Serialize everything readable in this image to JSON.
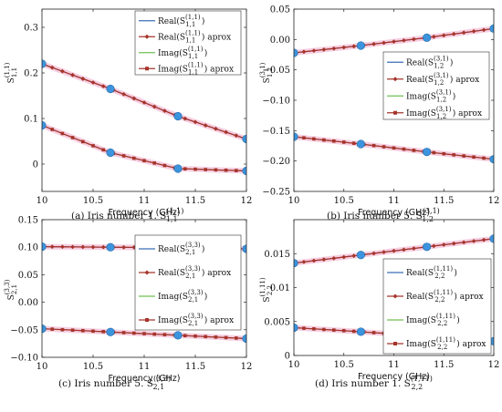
{
  "chart_data": [
    {
      "type": "line",
      "caption": "(a)  Iris number 1. S",
      "caption_sup": "(1,1)",
      "caption_sub": "1,1",
      "xlabel": "Frequency (GHz)",
      "ylabel_main": "S",
      "ylabel_sup": "(1,1)",
      "ylabel_sub": "1,1",
      "xlim": [
        10,
        12
      ],
      "ylim": [
        -0.06,
        0.34
      ],
      "xticks": [
        "10",
        "10.5",
        "11",
        "11.5",
        "12"
      ],
      "xtick_values": [
        10,
        10.5,
        11,
        11.5,
        12
      ],
      "yticks": [
        "0",
        "0.1",
        "0.2",
        "0.3"
      ],
      "ytick_values": [
        0,
        0.1,
        0.2,
        0.3
      ],
      "legend_position": "top-right",
      "legend_labels": [
        {
          "pre": "Real(S",
          "sup": "(1,1)",
          "sub": "1,1",
          "post": ")"
        },
        {
          "pre": "Real(S",
          "sup": "(1,1)",
          "sub": "1,1",
          "post": ") aprox"
        },
        {
          "pre": "Imag(S",
          "sup": "(1,1)",
          "sub": "1,1",
          "post": ")"
        },
        {
          "pre": "Imag(S",
          "sup": "(1,1)",
          "sub": "1,1",
          "post": ") aprox"
        }
      ],
      "series": [
        {
          "name": "Real",
          "x": [
            10,
            10.67,
            11.33,
            12
          ],
          "values": [
            0.22,
            0.165,
            0.105,
            0.055
          ]
        },
        {
          "name": "Imag",
          "x": [
            10,
            10.67,
            11.33,
            12
          ],
          "values": [
            0.085,
            0.025,
            -0.01,
            -0.015
          ]
        }
      ],
      "sample_points": [
        10,
        10.67,
        11.33,
        12
      ]
    },
    {
      "type": "line",
      "caption": "(b)  Iris number 5. S",
      "caption_sup": "(3,1)",
      "caption_sub": "1,2",
      "xlabel": "Frequency (GHz)",
      "ylabel_main": "S",
      "ylabel_sup": "(3,1)",
      "ylabel_sub": "1,2",
      "xlim": [
        10,
        12
      ],
      "ylim": [
        -0.25,
        0.05
      ],
      "xticks": [
        "10",
        "10.5",
        "11",
        "11.5",
        "12"
      ],
      "xtick_values": [
        10,
        10.5,
        11,
        11.5,
        12
      ],
      "yticks": [
        "0.05",
        "0.00",
        "−0.05",
        "−0.10",
        "−0.15",
        "−0.20",
        "−0.25"
      ],
      "ytick_values": [
        0.05,
        0,
        -0.05,
        -0.1,
        -0.15,
        -0.2,
        -0.25
      ],
      "legend_position": "center-right",
      "legend_labels": [
        {
          "pre": "Real(S",
          "sup": "(3,1)",
          "sub": "1,2",
          "post": ")"
        },
        {
          "pre": "Real(S",
          "sup": "(3,1)",
          "sub": "1,2",
          "post": ") aprox"
        },
        {
          "pre": "Imag(S",
          "sup": "(3,1)",
          "sub": "1,2",
          "post": ")"
        },
        {
          "pre": "Imag(S",
          "sup": "(3,1)",
          "sub": "1,2",
          "post": ") aprox"
        }
      ],
      "series": [
        {
          "name": "Real",
          "x": [
            10,
            10.67,
            11.33,
            12
          ],
          "values": [
            -0.022,
            -0.01,
            0.003,
            0.018
          ]
        },
        {
          "name": "Imag",
          "x": [
            10,
            10.67,
            11.33,
            12
          ],
          "values": [
            -0.16,
            -0.172,
            -0.185,
            -0.197
          ]
        }
      ],
      "sample_points": [
        10,
        10.67,
        11.33,
        12
      ]
    },
    {
      "type": "line",
      "caption": "(c)  Iris number 5. S",
      "caption_sup": "(3,3)",
      "caption_sub": "2,1",
      "xlabel": "Frequency (GHz)",
      "ylabel_main": "S",
      "ylabel_sup": "(3,3)",
      "ylabel_sub": "2,1",
      "xlim": [
        10,
        12
      ],
      "ylim": [
        -0.1,
        0.15
      ],
      "xticks": [
        "10",
        "10.5",
        "11",
        "11.5",
        "12"
      ],
      "xtick_values": [
        10,
        10.5,
        11,
        11.5,
        12
      ],
      "yticks": [
        "0.15",
        "0.10",
        "0.05",
        "0.00",
        "−0.05",
        "−0.10"
      ],
      "ytick_values": [
        0.15,
        0.1,
        0.05,
        0,
        -0.05,
        -0.1
      ],
      "legend_position": "right",
      "legend_labels": [
        {
          "pre": "Real(S",
          "sup": "(3,3)",
          "sub": "2,1",
          "post": ")"
        },
        {
          "pre": "Real(S",
          "sup": "(3,3)",
          "sub": "2,1",
          "post": ") aprox"
        },
        {
          "pre": "Imag(S",
          "sup": "(3,3)",
          "sub": "2,1",
          "post": ")"
        },
        {
          "pre": "Imag(S",
          "sup": "(3,3)",
          "sub": "2,1",
          "post": ") aprox"
        }
      ],
      "series": [
        {
          "name": "Real",
          "x": [
            10,
            10.67,
            11.33,
            12
          ],
          "values": [
            0.101,
            0.1,
            0.099,
            0.097
          ]
        },
        {
          "name": "Imag",
          "x": [
            10,
            10.67,
            11.33,
            12
          ],
          "values": [
            -0.048,
            -0.054,
            -0.06,
            -0.066
          ]
        }
      ],
      "sample_points": [
        10,
        10.67,
        11.33,
        12
      ]
    },
    {
      "type": "line",
      "caption": "(d)  Iris number 1. S",
      "caption_sup": "(1,11)",
      "caption_sub": "2,2",
      "xlabel": "Frequency (GHz)",
      "ylabel_main": "S",
      "ylabel_sup": "(1,11)",
      "ylabel_sub": "2,2",
      "xlim": [
        10,
        12
      ],
      "ylim": [
        0,
        0.02
      ],
      "xticks": [
        "10",
        "10.5",
        "11",
        "11.5",
        "12"
      ],
      "xtick_values": [
        10,
        10.5,
        11,
        11.5,
        12
      ],
      "yticks": [
        "0.015",
        "0.01",
        "0.005",
        "0"
      ],
      "ytick_values": [
        0.015,
        0.01,
        0.005,
        0
      ],
      "legend_position": "right",
      "legend_labels": [
        {
          "pre": "Real(S",
          "sup": "(1,11)",
          "sub": "2,2",
          "post": ")"
        },
        {
          "pre": "Real(S",
          "sup": "(1,11)",
          "sub": "2,2",
          "post": ") aprox"
        },
        {
          "pre": "Imag(S",
          "sup": "(1,11)",
          "sub": "2,2",
          "post": ")"
        },
        {
          "pre": "Imag(S",
          "sup": "(1,11)",
          "sub": "2,2",
          "post": ") aprox"
        }
      ],
      "series": [
        {
          "name": "Real",
          "x": [
            10,
            10.67,
            11.33,
            12
          ],
          "values": [
            0.0136,
            0.0148,
            0.016,
            0.0172
          ]
        },
        {
          "name": "Imag",
          "x": [
            10,
            10.67,
            11.33,
            12
          ],
          "values": [
            0.0041,
            0.0035,
            0.0028,
            0.0021
          ]
        }
      ],
      "sample_points": [
        10,
        10.67,
        11.33,
        12
      ]
    }
  ],
  "colors": {
    "real": "#3b6fb6",
    "real_aprox": "#a5342b",
    "imag": "#6fbf55",
    "imag_aprox": "#a5342b",
    "sample": "#3b94dd",
    "band": "#f4c6dc"
  }
}
